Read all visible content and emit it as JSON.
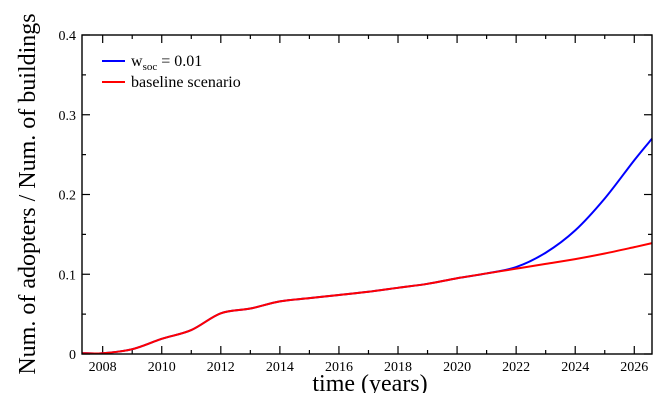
{
  "chart_data": {
    "type": "line",
    "xlabel": "time (years)",
    "ylabel": "Num. of adopters / Num. of buildings",
    "xlim": [
      2007.3,
      2026.6
    ],
    "ylim": [
      0,
      0.4
    ],
    "x_ticks": [
      2008,
      2010,
      2012,
      2014,
      2016,
      2018,
      2020,
      2022,
      2024,
      2026
    ],
    "y_ticks": [
      0,
      0.1,
      0.2,
      0.3,
      0.4
    ],
    "y_tick_labels": [
      "0",
      "0.1",
      "0.2",
      "0.3",
      "0.4"
    ],
    "legend_position": "top-left",
    "grid": false,
    "series": [
      {
        "name_main": "w",
        "name_sub": "soc",
        "name_rest": " = 0.01",
        "color": "#0000ff",
        "x": [
          2007.3,
          2008,
          2009,
          2010,
          2011,
          2012,
          2013,
          2014,
          2015,
          2016,
          2017,
          2018,
          2019,
          2020,
          2021,
          2022,
          2023,
          2024,
          2025,
          2026,
          2026.6
        ],
        "y": [
          0.001,
          0.001,
          0.006,
          0.019,
          0.03,
          0.051,
          0.057,
          0.066,
          0.07,
          0.074,
          0.078,
          0.083,
          0.088,
          0.095,
          0.101,
          0.109,
          0.127,
          0.155,
          0.195,
          0.243,
          0.27
        ]
      },
      {
        "name": "baseline scenario",
        "color": "#ff0000",
        "x": [
          2007.3,
          2008,
          2009,
          2010,
          2011,
          2012,
          2013,
          2014,
          2015,
          2016,
          2017,
          2018,
          2019,
          2020,
          2021,
          2022,
          2023,
          2024,
          2025,
          2026,
          2026.6
        ],
        "y": [
          0.001,
          0.001,
          0.006,
          0.019,
          0.03,
          0.051,
          0.057,
          0.066,
          0.07,
          0.074,
          0.078,
          0.083,
          0.088,
          0.095,
          0.101,
          0.107,
          0.113,
          0.119,
          0.126,
          0.134,
          0.139
        ]
      }
    ]
  }
}
